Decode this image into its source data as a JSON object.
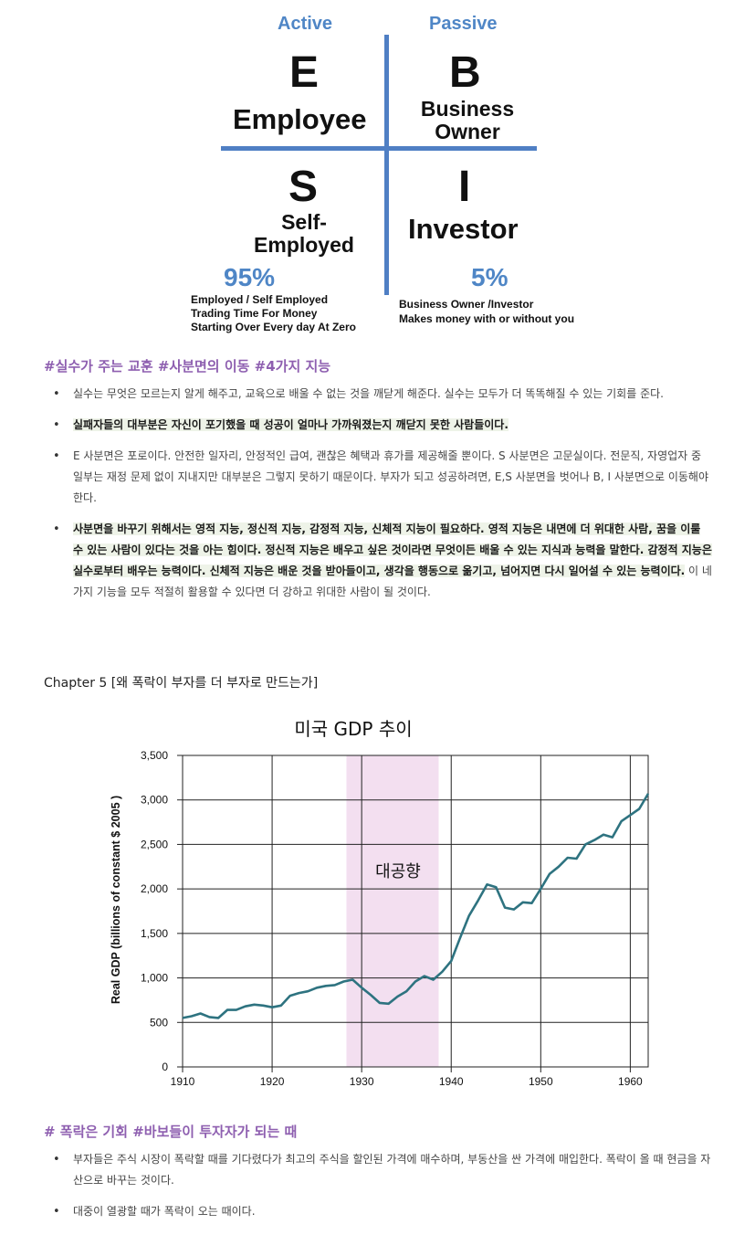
{
  "quadrant": {
    "active_label": "Active",
    "passive_label": "Passive",
    "e": {
      "letter": "E",
      "word": "Employee"
    },
    "b": {
      "letter": "B",
      "line1": "Business",
      "line2": "Owner"
    },
    "s": {
      "letter": "S",
      "line1": "Self-",
      "line2": "Employed"
    },
    "i": {
      "letter": "I",
      "word": "Investor"
    },
    "left_percent": "95%",
    "left_notes": [
      "Employed / Self Employed",
      "Trading Time For Money",
      "Starting Over Every day At Zero"
    ],
    "right_percent": "5%",
    "right_notes": [
      "Business Owner /Investor",
      "Makes money with or without you"
    ],
    "colors": {
      "accent": "#4f7fc4"
    }
  },
  "section1": {
    "hashtags": "#실수가 주는 교훈  #사분면의 이동 #4가지 지능",
    "bullets": [
      "실수는 무엇은 모르는지 알게 해주고, 교육으로 배울 수 없는 것을 깨닫게 해준다. 실수는 모두가 더 똑똑해질 수 있는 기회를 준다.",
      "실패자들의 대부분은 자신이 포기했을 때 성공이 얼마나 가까워졌는지 깨닫지 못한 사람들이다.",
      "E 사분면은 포로이다. 안전한 일자리, 안정적인 급여, 괜찮은 혜택과 휴가를 제공해줄 뿐이다. S 사분면은 고문실이다. 전문직, 자영업자 중 일부는 재정 문제 없이 지내지만 대부분은 그렇지 못하기 때문이다. 부자가 되고 성공하려면, E,S 사분면을 벗어나 B, I 사분면으로 이동해야 한다.",
      "사분면을 바꾸기 위해서는 영적 지능, 정신적 지능, 감정적 지능, 신체적 지능이 필요하다. 영적 지능은 내면에 더 위대한 사람, 꿈을 이룰 수 있는 사람이 있다는 것을 아는 힘이다. 정신적 지능은 배우고 싶은 것이라면 무엇이든 배울 수 있는 지식과 능력을 말한다. 감정적 지능은 실수로부터 배우는 능력이다. 신체적 지능은 배운 것을 받아들이고, 생각을 행동으로 옮기고, 넘어지면 다시 일어설 수 있는 능력이다.",
      "이 네 가지 기능을 모두 적절히 활용할 수 있다면 더 강하고 위대한 사람이 될 것이다."
    ]
  },
  "chapter_title": "Chapter 5 [왜 폭락이 부자를 더 부자로 만드는가]",
  "chart_data": {
    "type": "line",
    "title": "미국 GDP 추이",
    "xlabel": "",
    "ylabel": "Real GDP (billions of constant $ 2005 )",
    "xlim": [
      1910,
      1962
    ],
    "ylim": [
      0,
      3500
    ],
    "x_ticks": [
      1910,
      1920,
      1930,
      1940,
      1950,
      1960
    ],
    "y_ticks": [
      0,
      500,
      1000,
      1500,
      2000,
      2500,
      3000,
      3500
    ],
    "y_tick_labels": [
      "0",
      "500",
      "1,000",
      "1,500",
      "2,000",
      "2,500",
      "3,000",
      "3,500"
    ],
    "grid": true,
    "annotation": {
      "label": "대공향",
      "x_start": 1928.3,
      "x_end": 1938.6,
      "color": "#f3dff0"
    },
    "line_color": "#2e7380",
    "series": [
      {
        "x": [
          1910,
          1911,
          1912,
          1913,
          1914,
          1915,
          1916,
          1917,
          1918,
          1919,
          1920,
          1921,
          1922,
          1923,
          1924,
          1925,
          1926,
          1927,
          1928,
          1929,
          1930,
          1931,
          1932,
          1933,
          1934,
          1935,
          1936,
          1937,
          1938,
          1939,
          1940,
          1941,
          1942,
          1943,
          1944,
          1945,
          1946,
          1947,
          1948,
          1949,
          1950,
          1951,
          1952,
          1953,
          1954,
          1955,
          1956,
          1957,
          1958,
          1959,
          1960,
          1961,
          1962
        ],
        "values": [
          550,
          570,
          600,
          560,
          550,
          640,
          640,
          680,
          700,
          690,
          670,
          690,
          800,
          830,
          850,
          890,
          910,
          920,
          960,
          980,
          890,
          810,
          720,
          710,
          790,
          850,
          960,
          1020,
          980,
          1070,
          1190,
          1450,
          1700,
          1870,
          2050,
          2020,
          1790,
          1770,
          1850,
          1840,
          2000,
          2170,
          2250,
          2350,
          2340,
          2500,
          2550,
          2610,
          2580,
          2760,
          2830,
          2900,
          3070
        ]
      }
    ]
  },
  "section2": {
    "hashtags": "# 폭락은 기회  #바보들이 투자자가 되는 때",
    "bullets": [
      "부자들은 주식 시장이 폭락할 때를 기다렸다가 최고의 주식을 할인된 가격에 매수하며, 부동산을 싼 가격에 매입한다. 폭락이 올 때 현금을 자산으로 바꾸는 것이다.",
      "대중이 열광할 때가 폭락이 오는 때이다."
    ]
  }
}
